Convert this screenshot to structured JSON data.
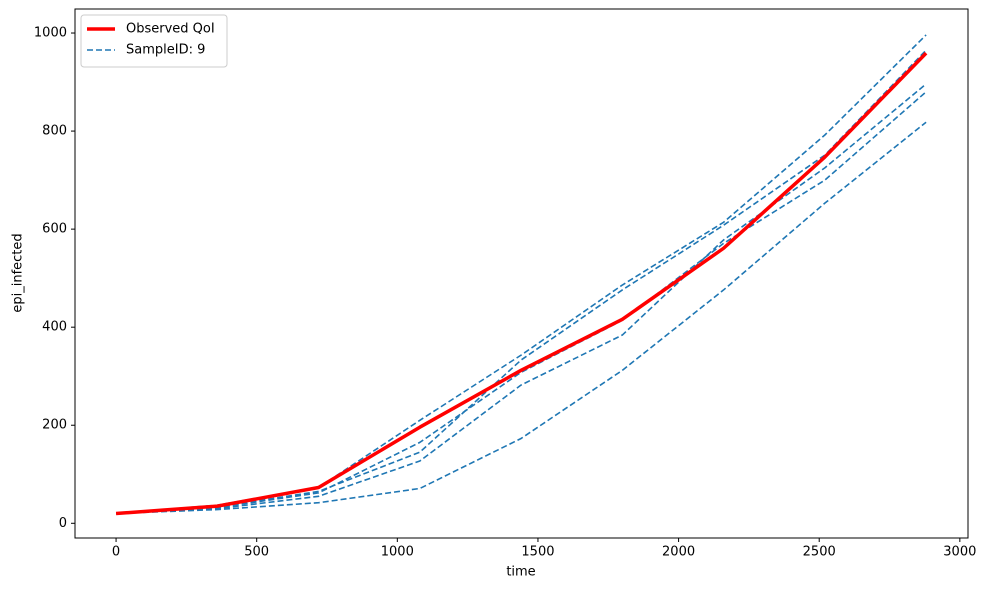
{
  "chart_data": {
    "type": "line",
    "x_label": "time",
    "y_label": "epi_infected",
    "x": [
      0,
      360,
      720,
      1080,
      1440,
      1800,
      2160,
      2520,
      2880
    ],
    "series": [
      {
        "color": "#1f77b4",
        "dashed": true,
        "values": [
          20,
          28,
          42,
          71,
          173,
          312,
          476,
          653,
          818
        ]
      },
      {
        "color": "#1f77b4",
        "dashed": true,
        "values": [
          20,
          37,
          73,
          210,
          343,
          486,
          614,
          792,
          996
        ]
      },
      {
        "color": "#1f77b4",
        "dashed": true,
        "values": [
          20,
          33,
          65,
          145,
          333,
          476,
          608,
          751,
          965
        ]
      },
      {
        "color": "#1f77b4",
        "dashed": true,
        "values": [
          20,
          30,
          55,
          127,
          282,
          384,
          578,
          725,
          896
        ]
      },
      {
        "name": "SampleID: 9",
        "color": "#1f77b4",
        "dashed": true,
        "values": [
          20,
          32,
          62,
          165,
          308,
          414,
          571,
          700,
          880
        ]
      },
      {
        "name": "Observed QoI",
        "color": "#ff0000",
        "dashed": false,
        "width": 3.5,
        "values": [
          20,
          35,
          73,
          196,
          312,
          416,
          561,
          747,
          959
        ]
      }
    ],
    "legend_order": [
      5,
      4
    ],
    "legend": "upper left",
    "xlim": [
      -146,
      3029
    ],
    "xticks": [
      0,
      500,
      1000,
      1500,
      2000,
      2500,
      3000
    ],
    "ylim": [
      -30,
      1049
    ],
    "yticks": [
      0,
      200,
      400,
      600,
      800,
      1000
    ]
  }
}
